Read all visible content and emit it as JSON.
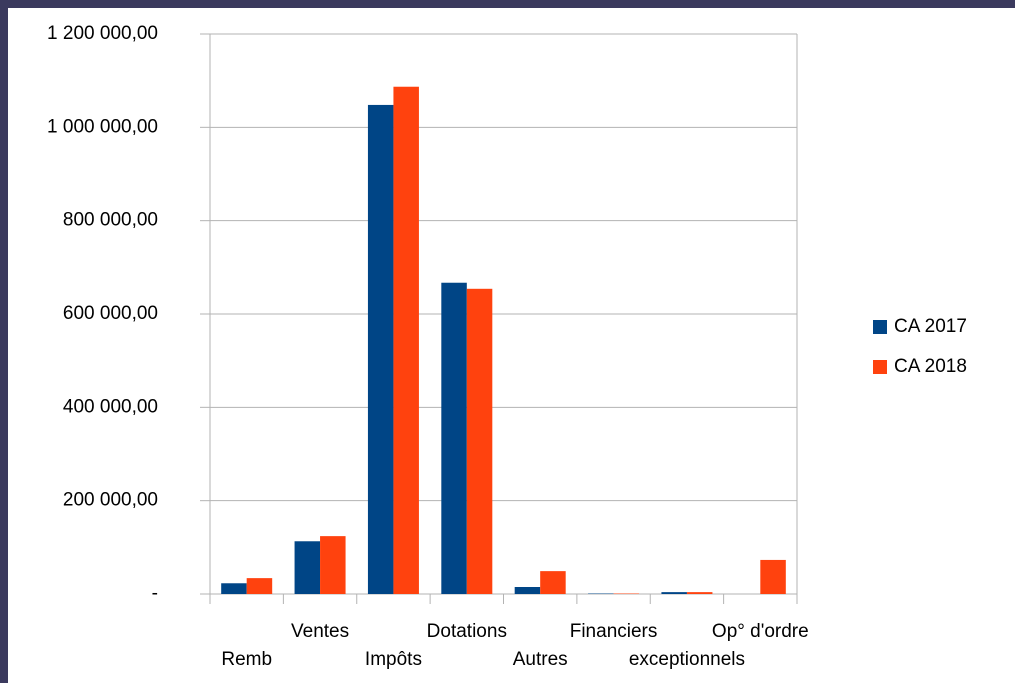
{
  "chart_data": {
    "type": "bar",
    "categories": [
      "Remb",
      "Ventes",
      "Impôts",
      "Dotations",
      "Autres",
      "Financiers",
      "exceptionnels",
      "Op° d'ordre"
    ],
    "series": [
      {
        "name": "CA 2017",
        "color": "#004586",
        "values": [
          23000,
          113000,
          1048000,
          667000,
          15000,
          1000,
          4000,
          0
        ]
      },
      {
        "name": "CA 2018",
        "color": "#ff420e",
        "values": [
          34000,
          124000,
          1087000,
          654000,
          49000,
          1000,
          4000,
          73000
        ]
      }
    ],
    "ylim": [
      0,
      1200000
    ],
    "yticks": [
      {
        "value": 0,
        "label": "-"
      },
      {
        "value": 200000,
        "label": "200 000,00"
      },
      {
        "value": 400000,
        "label": "400 000,00"
      },
      {
        "value": 600000,
        "label": "600 000,00"
      },
      {
        "value": 800000,
        "label": "800 000,00"
      },
      {
        "value": 1000000,
        "label": "1 000 000,00"
      },
      {
        "value": 1200000,
        "label": "1 200 000,00"
      }
    ],
    "grid": true,
    "legend": "right"
  }
}
